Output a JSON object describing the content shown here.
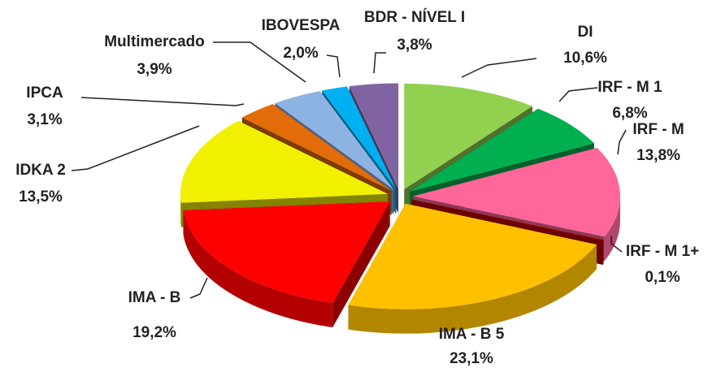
{
  "chart_data": {
    "type": "pie3d",
    "categories": [
      "DI",
      "IRF - M 1",
      "IRF - M",
      "IRF - M 1+",
      "IMA - B 5",
      "IMA - B",
      "IDKA 2",
      "IPCA",
      "Multimercado",
      "IBOVESPA",
      "BDR - NÍVEL I"
    ],
    "values": [
      10.6,
      6.8,
      13.8,
      0.1,
      23.1,
      19.2,
      13.5,
      3.1,
      3.9,
      2.0,
      3.8
    ],
    "value_labels": [
      "10,6%",
      "6,8%",
      "13,8%",
      "0,1%",
      "23,1%",
      "19,2%",
      "13,5%",
      "3,1%",
      "3,9%",
      "2,0%",
      "3,8%"
    ],
    "colors": [
      "#92d050",
      "#00b050",
      "#ff6699",
      "#c00000",
      "#ffc000",
      "#ff0000",
      "#f0f000",
      "#e36c0a",
      "#8db3e2",
      "#00b0f0",
      "#8064a2"
    ]
  }
}
